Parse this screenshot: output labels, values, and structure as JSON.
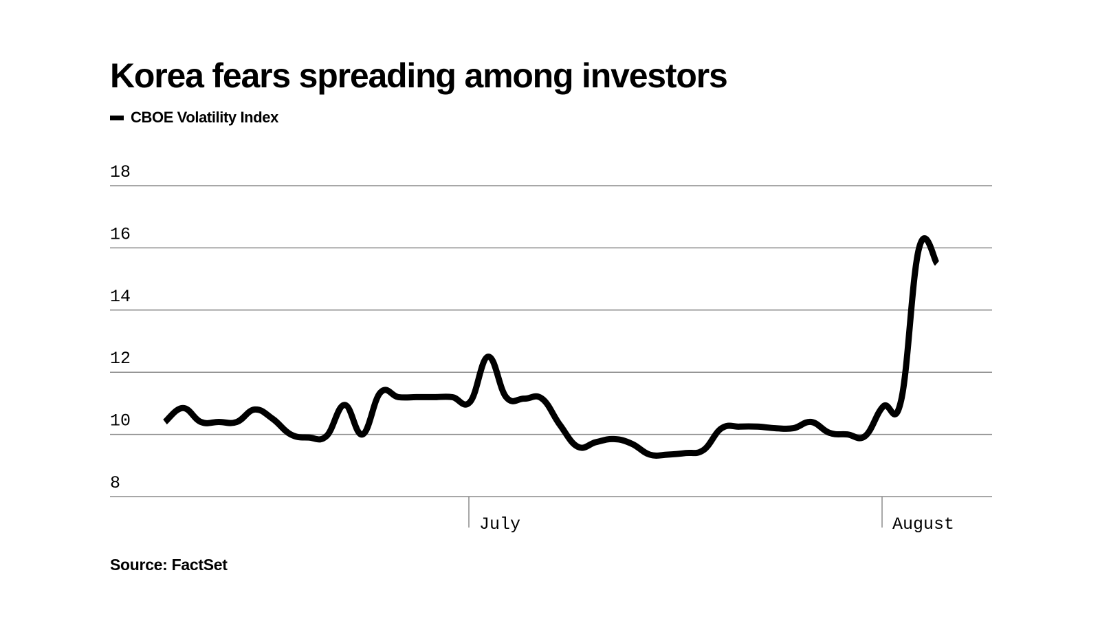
{
  "chart_data": {
    "type": "line",
    "title": "Korea fears spreading among investors",
    "xlabel": "",
    "ylabel": "",
    "ylim": [
      8,
      18
    ],
    "y_ticks": [
      "18",
      "16",
      "14",
      "12",
      "10",
      "8"
    ],
    "x_ticks": [
      {
        "label": "July",
        "index": 17
      },
      {
        "label": "August",
        "index": 40
      }
    ],
    "grid": true,
    "legend": "top-left",
    "source": "Source: FactSet",
    "series": [
      {
        "name": "CBOE Volatility Index",
        "color": "#000000",
        "values": [
          10.4,
          10.85,
          10.4,
          10.4,
          10.4,
          10.8,
          10.5,
          10.0,
          9.9,
          9.95,
          10.95,
          10.0,
          11.35,
          11.2,
          11.2,
          11.2,
          11.2,
          11.05,
          12.5,
          11.2,
          11.15,
          11.15,
          10.3,
          9.6,
          9.75,
          9.85,
          9.7,
          9.35,
          9.35,
          9.4,
          9.5,
          10.2,
          10.25,
          10.25,
          10.2,
          10.2,
          10.4,
          10.05,
          10.0,
          9.95,
          10.9,
          11.1,
          16.0,
          15.5
        ]
      }
    ]
  }
}
